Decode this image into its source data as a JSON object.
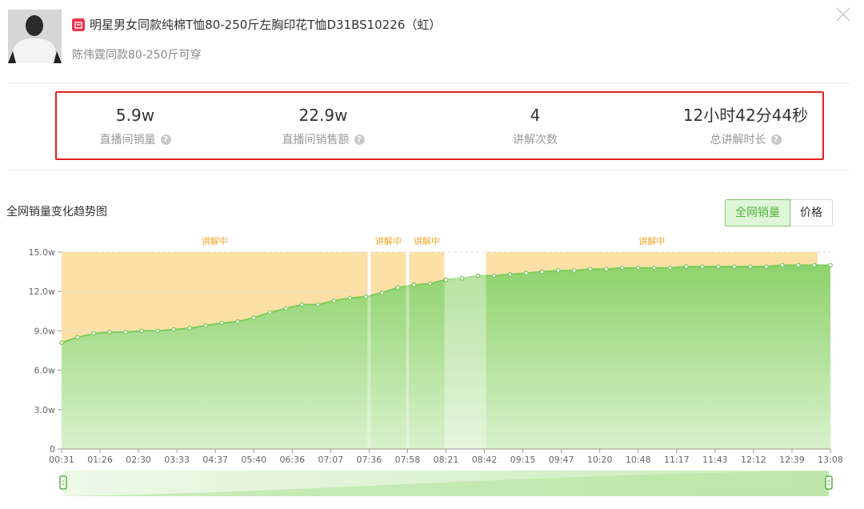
{
  "product": {
    "title": "明星男女同款纯棉T恤80-250斤左胸印花T恤D31BS10226（虹）",
    "subtitle": "陈伟霆同款80-250斤可穿"
  },
  "stats": [
    {
      "value": "5.9w",
      "label": "直播间销量"
    },
    {
      "value": "22.9w",
      "label": "直播间销售额"
    },
    {
      "value": "4",
      "label": "讲解次数"
    },
    {
      "value": "12小时42分44秒",
      "label": "总讲解时长"
    }
  ],
  "chart_section": {
    "title": "全网销量变化趋势图",
    "toggle": [
      "全网销量",
      "价格"
    ],
    "active_toggle": "全网销量"
  },
  "colors": {
    "line": "#7ccc5c",
    "fill_top": "#8fd26c",
    "fill_bottom": "#d7f2cb",
    "band": "#fde0a6",
    "band_label": "#f5a623",
    "highlight": "#e02020"
  },
  "chart_data": {
    "type": "area",
    "x_ticks": [
      "00:31",
      "01:26",
      "02:30",
      "03:33",
      "04:37",
      "05:40",
      "06:36",
      "07:07",
      "07:36",
      "07:58",
      "08:21",
      "08:42",
      "09:15",
      "09:47",
      "10:20",
      "10:48",
      "11:17",
      "11:43",
      "12:12",
      "12:39",
      "13:08"
    ],
    "y_ticks": [
      "0",
      "3.0w",
      "6.0w",
      "9.0w",
      "12.0w",
      "15.0w"
    ],
    "ylim": [
      0,
      15
    ],
    "unit": "w",
    "series": [
      {
        "values": [
          8.1,
          8.5,
          8.8,
          8.9,
          8.9,
          9.0,
          9.0,
          9.1,
          9.2,
          9.4,
          9.6,
          9.7,
          10.0,
          10.4,
          10.7,
          11.0,
          11.0,
          11.3,
          11.5,
          11.6,
          11.9,
          12.3,
          12.5,
          12.6,
          12.9,
          13.0,
          13.2,
          13.2,
          13.3,
          13.4,
          13.5,
          13.6,
          13.6,
          13.7,
          13.7,
          13.8,
          13.8,
          13.8,
          13.8,
          13.9,
          13.9,
          13.9,
          13.9,
          13.9,
          13.9,
          14.0,
          14.0,
          14.0,
          14.0
        ]
      }
    ],
    "explaining_bands": [
      {
        "label": "讲解中",
        "from": "00:31",
        "to": "07:36"
      },
      {
        "label": "讲解中",
        "from": "07:36",
        "to": "07:58"
      },
      {
        "label": "讲解中",
        "from": "07:58",
        "to": "08:21"
      },
      {
        "label": "讲解中",
        "from": "08:42",
        "to": "13:08"
      }
    ]
  }
}
